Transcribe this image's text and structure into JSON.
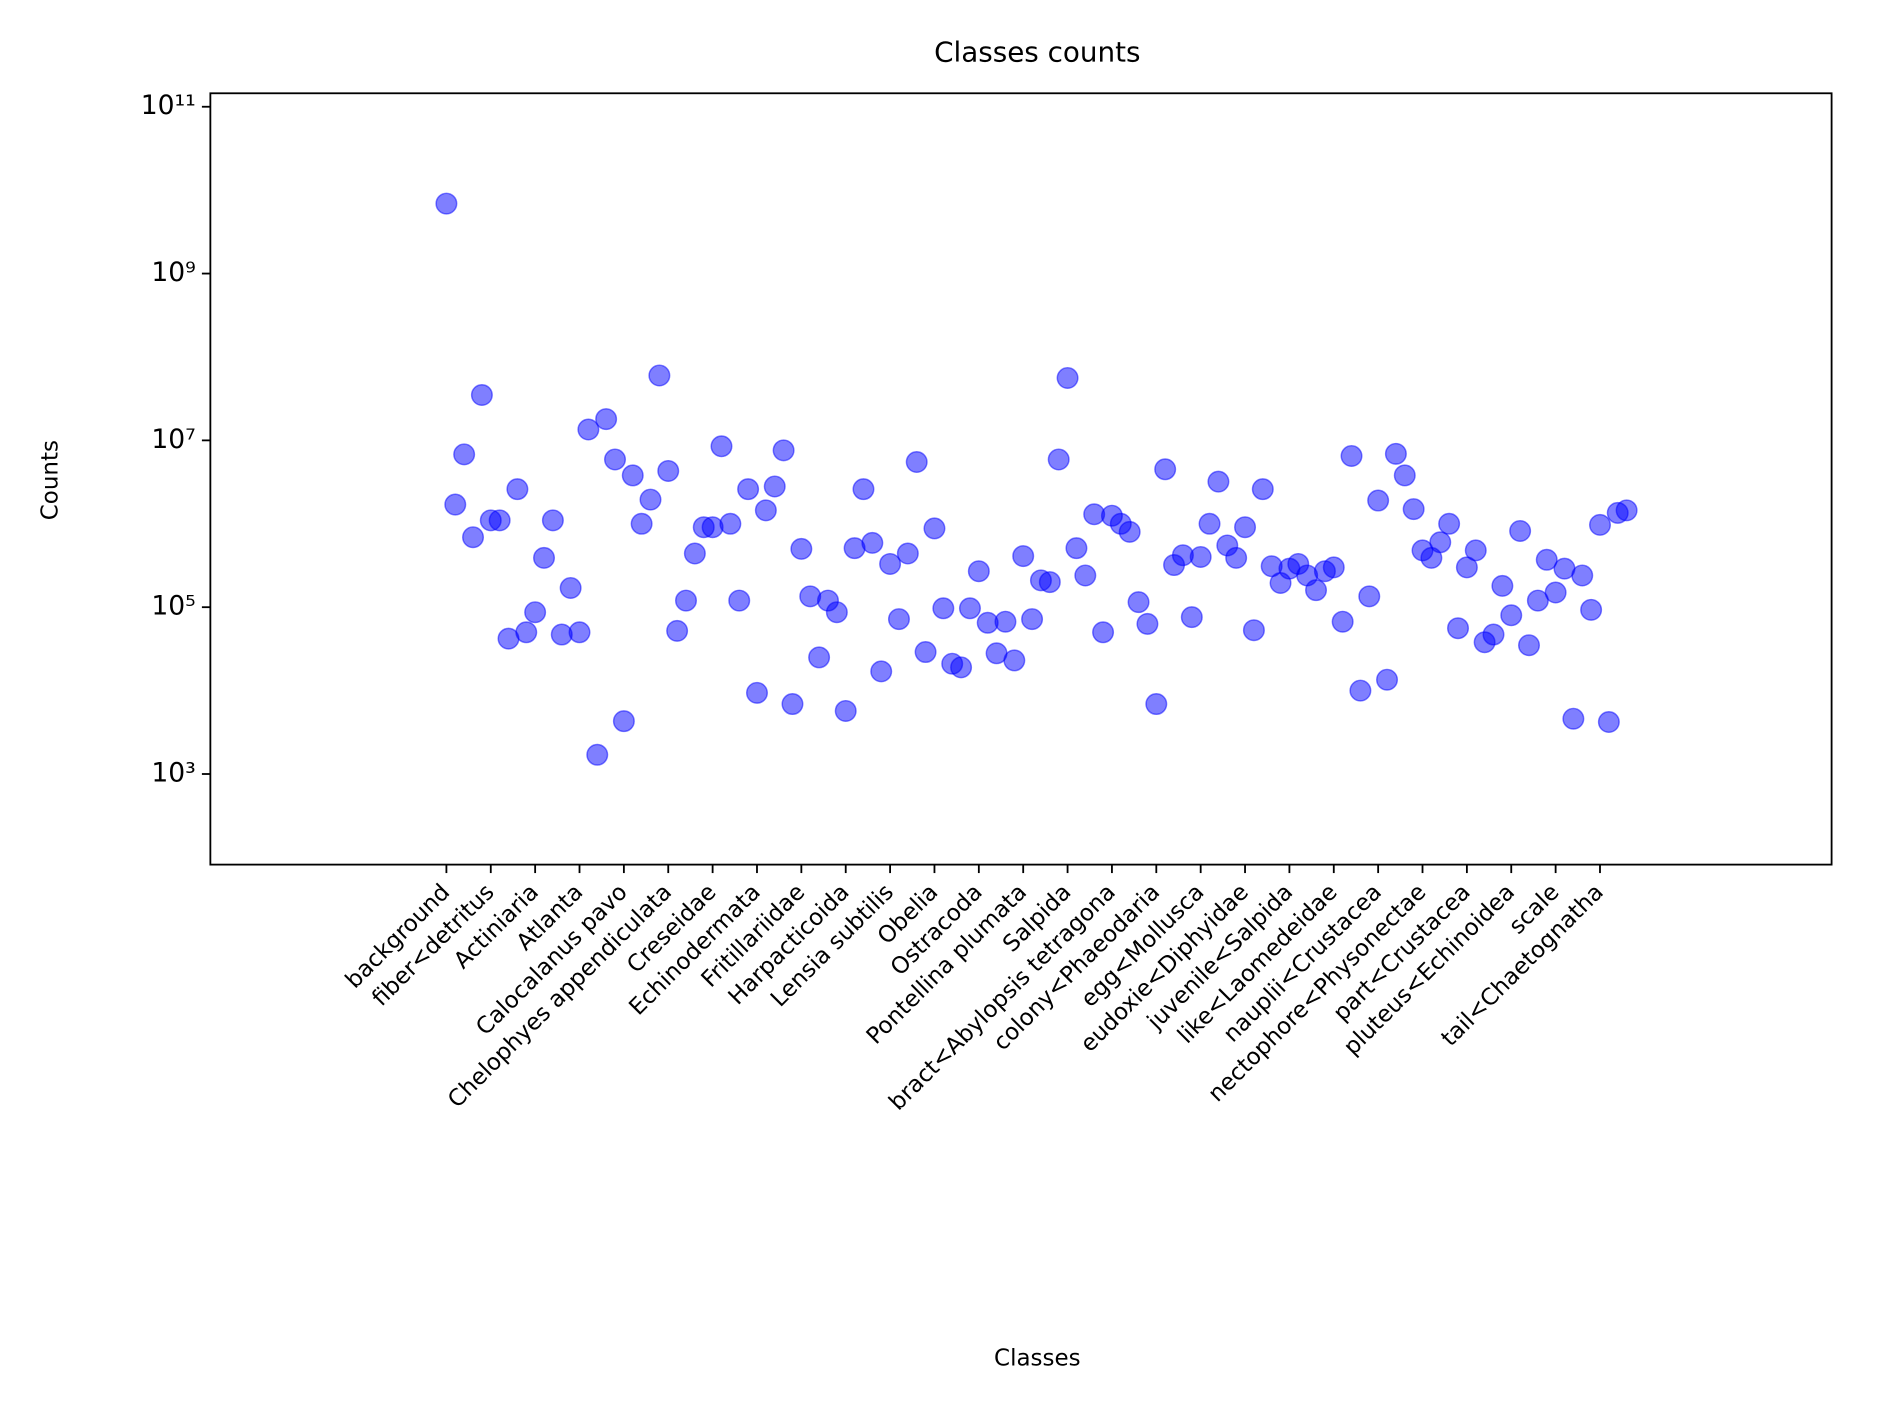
{
  "chart_data": {
    "type": "scatter",
    "title": "Classes counts",
    "x_label": "Classes",
    "y_label": "Counts",
    "categories": [
      "background",
      null,
      null,
      null,
      null,
      "fiber<detritus",
      null,
      null,
      null,
      null,
      "Actiniaria",
      null,
      null,
      null,
      null,
      "Atlanta",
      null,
      null,
      null,
      null,
      "Calocalanus pavo",
      null,
      null,
      null,
      null,
      "Chelophyes appendiculata",
      null,
      null,
      null,
      null,
      "Creseidae",
      null,
      null,
      null,
      null,
      "Echinodermata",
      null,
      null,
      null,
      null,
      "Fritillariidae",
      null,
      null,
      null,
      null,
      "Harpacticoida",
      null,
      null,
      null,
      null,
      "Lensia subtilis",
      null,
      null,
      null,
      null,
      "Obelia",
      null,
      null,
      null,
      null,
      "Ostracoda",
      null,
      null,
      null,
      null,
      "Pontellina plumata",
      null,
      null,
      null,
      null,
      "Salpida",
      null,
      null,
      null,
      null,
      "bract<Abylopsis tetragona",
      null,
      null,
      null,
      null,
      "colony<Phaeodaria",
      null,
      null,
      null,
      null,
      "egg<Mollusca",
      null,
      null,
      null,
      null,
      "eudoxie<Diphyidae",
      null,
      null,
      null,
      null,
      "juvenile<Salpida",
      null,
      null,
      null,
      null,
      "like<Laomedeidae",
      null,
      null,
      null,
      null,
      "nauplii<Crustacea",
      null,
      null,
      null,
      null,
      "nectophore<Physonectae",
      null,
      null,
      null,
      null,
      "part<Crustacea",
      null,
      null,
      null,
      null,
      "pluteus<Echinoidea",
      null,
      null,
      null,
      null,
      "scale",
      null,
      null,
      null,
      null,
      "tail<Chaetognatha",
      null,
      null,
      null
    ],
    "values": [
      6900000000,
      1700000,
      6800000,
      690000,
      35000000,
      1100000,
      1100000,
      42000,
      2600000,
      50000,
      87000,
      390000,
      1100000,
      47000,
      170000,
      50000,
      13500000,
      1700,
      18000000,
      5900000,
      4300,
      3800000,
      1000000,
      1950000,
      60000000,
      4300000,
      52000,
      120000,
      440000,
      910000,
      910000,
      8500000,
      1000000,
      120000,
      2600000,
      9400,
      1450000,
      2800000,
      7600000,
      6900,
      500000,
      135000,
      25000,
      120000,
      87000,
      5700,
      510000,
      2600000,
      590000,
      17000,
      330000,
      72000,
      440000,
      5500000,
      29000,
      880000,
      97000,
      21000,
      19000,
      97000,
      270000,
      65000,
      28000,
      67000,
      23000,
      410000,
      72000,
      210000,
      200000,
      5900000,
      56000000,
      510000,
      240000,
      1300000,
      50000,
      1250000,
      1000000,
      800000,
      115000,
      63000,
      6900,
      4500000,
      320000,
      420000,
      76000,
      400000,
      1000000,
      3200000,
      550000,
      390000,
      910000,
      53000,
      2600000,
      310000,
      195000,
      290000,
      330000,
      240000,
      160000,
      270000,
      300000,
      67000,
      6500000,
      10000,
      135000,
      1900000,
      13500,
      6900000,
      3800000,
      1500000,
      480000,
      390000,
      600000,
      1000000,
      56000,
      300000,
      480000,
      38000,
      47000,
      180000,
      80000,
      820000,
      35000,
      120000,
      370000,
      150000,
      290000,
      4600,
      240000,
      93000,
      970000,
      4200,
      1350000,
      1450000
    ],
    "color": "#0000ff",
    "alpha": 0.5,
    "log_y": true,
    "xlim": [
      -26.6,
      156.1
    ],
    "ylim": [
      82,
      145000000000
    ],
    "yticks": [
      {
        "value": 1000,
        "label": "10³"
      },
      {
        "value": 100000,
        "label": "10⁵"
      },
      {
        "value": 10000000,
        "label": "10⁷"
      },
      {
        "value": 1000000000,
        "label": "10⁹"
      },
      {
        "value": 100000000000,
        "label": "10¹¹"
      }
    ]
  }
}
